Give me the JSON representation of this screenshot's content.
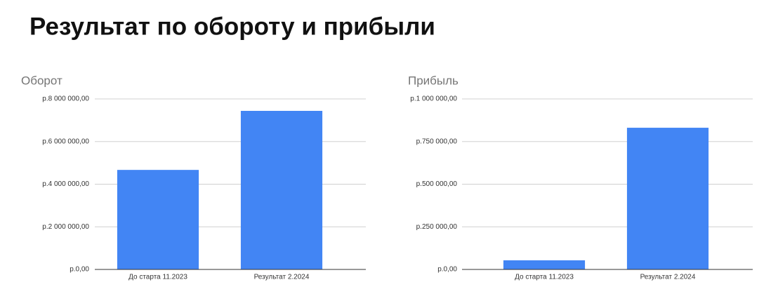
{
  "title": "Результат по обороту и прибыли",
  "chart_data": [
    {
      "type": "bar",
      "title": "Оборот",
      "color": "#4285f4",
      "grid": true,
      "categories": [
        "До старта 11.2023",
        "Результат 2.2024"
      ],
      "values": [
        4670000,
        7440000
      ],
      "ylim": [
        0,
        8000000
      ],
      "yticks": [
        {
          "value": 0,
          "label": "р.0,00"
        },
        {
          "value": 2000000,
          "label": "р.2 000 000,00"
        },
        {
          "value": 4000000,
          "label": "р.4 000 000,00"
        },
        {
          "value": 6000000,
          "label": "р.6 000 000,00"
        },
        {
          "value": 8000000,
          "label": "р.8 000 000,00"
        }
      ]
    },
    {
      "type": "bar",
      "title": "Прибыль",
      "color": "#4285f4",
      "grid": true,
      "categories": [
        "До старта 11.2023",
        "Результат 2.2024"
      ],
      "values": [
        53500,
        831000
      ],
      "ylim": [
        0,
        1000000
      ],
      "yticks": [
        {
          "value": 0,
          "label": "р.0,00"
        },
        {
          "value": 250000,
          "label": "р.250 000,00"
        },
        {
          "value": 500000,
          "label": "р.500 000,00"
        },
        {
          "value": 750000,
          "label": "р.750 000,00"
        },
        {
          "value": 1000000,
          "label": "р.1 000 000,00"
        }
      ]
    }
  ]
}
